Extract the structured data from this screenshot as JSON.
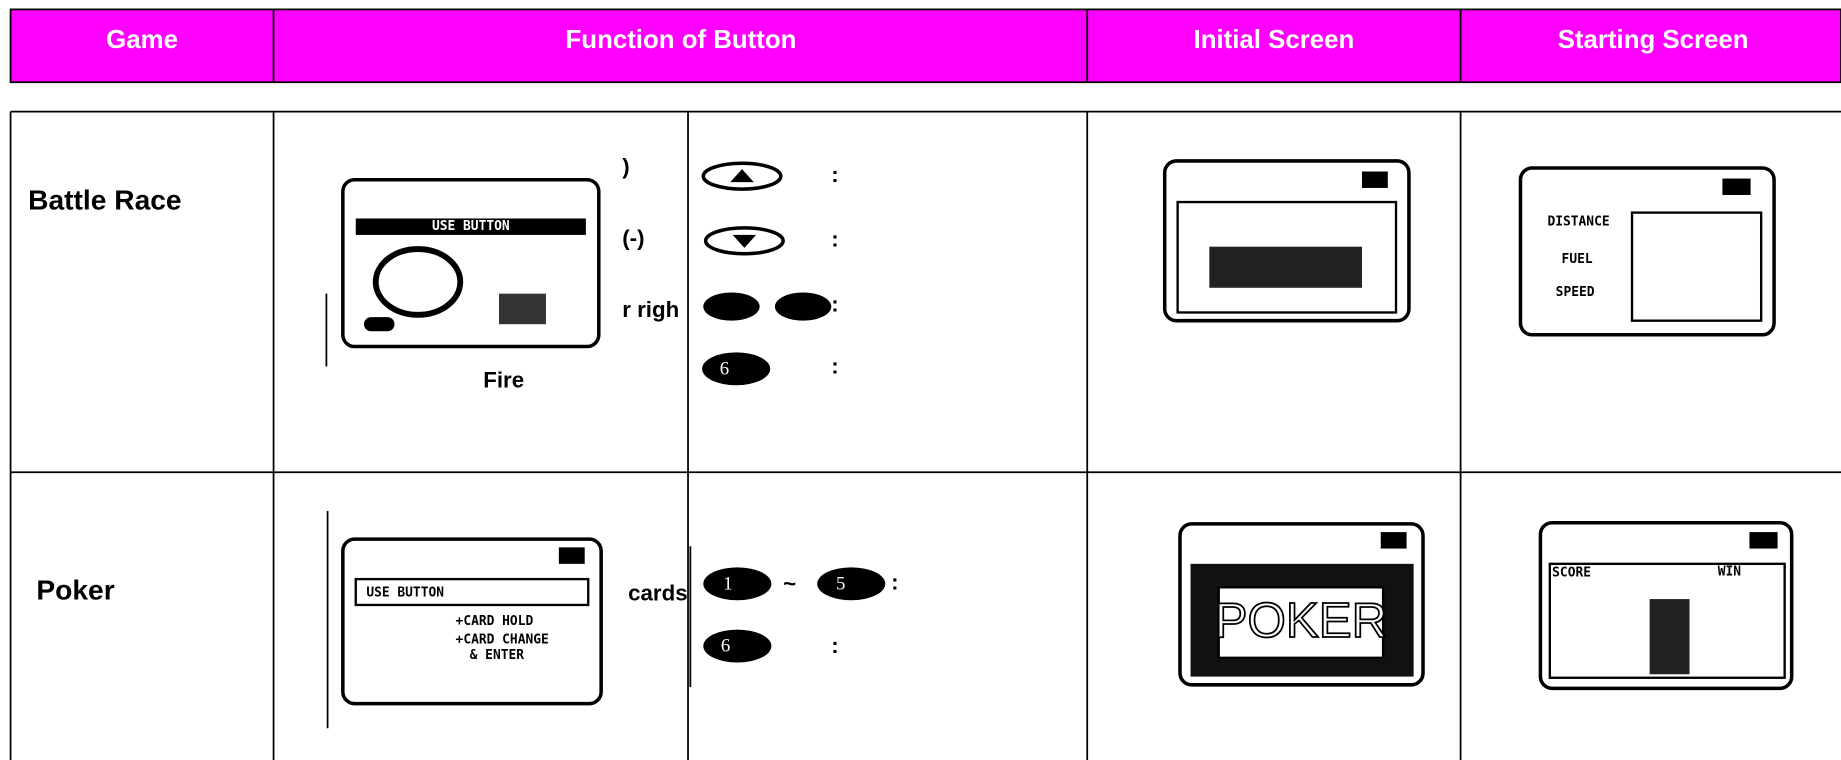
{
  "header": {
    "columns": [
      "Game",
      "Function of Button",
      "Initial Screen",
      "Starting Screen"
    ]
  },
  "rows": [
    {
      "game": "Battle Race",
      "caption": "Fire",
      "labels": [
        ")",
        "(-)",
        "r righ"
      ],
      "colons": [
        ":",
        ":",
        ":",
        ":"
      ],
      "button": "6",
      "help_screen": "USE BUTTON",
      "start_screen": [
        "DISTANCE",
        "FUEL",
        "SPEED"
      ]
    },
    {
      "game": "Poker",
      "label": "cards",
      "buttons": [
        "1",
        "5",
        "6"
      ],
      "tilde": "~",
      "colons": [
        ":",
        ":"
      ],
      "help_screen": [
        "USE BUTTON",
        "+CARD HOLD",
        "+CARD CHANGE",
        "& ENTER"
      ],
      "title_screen": "POKER",
      "start_screen": [
        "SCORE",
        "WIN"
      ]
    }
  ]
}
